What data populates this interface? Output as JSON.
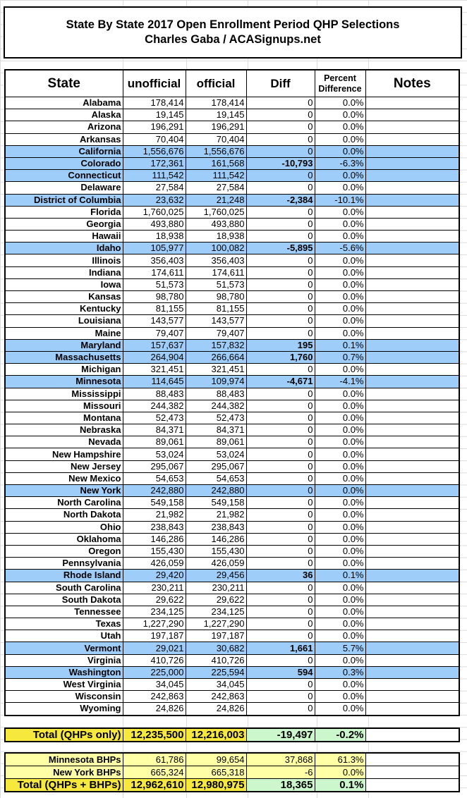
{
  "title": {
    "line1": "State By State 2017 Open Enrollment Period QHP Selections",
    "line2": "Charles Gaba / ACASignups.net"
  },
  "headers": {
    "state": "State",
    "unofficial": "unofficial",
    "official": "official",
    "diff": "Diff",
    "pct_line1": "Percent",
    "pct_line2": "Difference",
    "notes": "Notes"
  },
  "colors": {
    "highlight": "#9fcdfa",
    "total_yellow": "#f7e83e",
    "bhp_yellow": "#ffffa6",
    "diff_green": "#ccf7cc"
  },
  "rows": [
    {
      "state": "Alabama",
      "unofficial": "178,414",
      "official": "178,414",
      "diff": "0",
      "pct": "0.0%",
      "highlight": false
    },
    {
      "state": "Alaska",
      "unofficial": "19,145",
      "official": "19,145",
      "diff": "0",
      "pct": "0.0%",
      "highlight": false
    },
    {
      "state": "Arizona",
      "unofficial": "196,291",
      "official": "196,291",
      "diff": "0",
      "pct": "0.0%",
      "highlight": false
    },
    {
      "state": "Arkansas",
      "unofficial": "70,404",
      "official": "70,404",
      "diff": "0",
      "pct": "0.0%",
      "highlight": false
    },
    {
      "state": "California",
      "unofficial": "1,556,676",
      "official": "1,556,676",
      "diff": "0",
      "pct": "0.0%",
      "highlight": true
    },
    {
      "state": "Colorado",
      "unofficial": "172,361",
      "official": "161,568",
      "diff": "-10,793",
      "pct": "-6.3%",
      "highlight": true
    },
    {
      "state": "Connecticut",
      "unofficial": "111,542",
      "official": "111,542",
      "diff": "0",
      "pct": "0.0%",
      "highlight": true
    },
    {
      "state": "Delaware",
      "unofficial": "27,584",
      "official": "27,584",
      "diff": "0",
      "pct": "0.0%",
      "highlight": false
    },
    {
      "state": "District of Columbia",
      "unofficial": "23,632",
      "official": "21,248",
      "diff": "-2,384",
      "pct": "-10.1%",
      "highlight": true
    },
    {
      "state": "Florida",
      "unofficial": "1,760,025",
      "official": "1,760,025",
      "diff": "0",
      "pct": "0.0%",
      "highlight": false
    },
    {
      "state": "Georgia",
      "unofficial": "493,880",
      "official": "493,880",
      "diff": "0",
      "pct": "0.0%",
      "highlight": false
    },
    {
      "state": "Hawaii",
      "unofficial": "18,938",
      "official": "18,938",
      "diff": "0",
      "pct": "0.0%",
      "highlight": false
    },
    {
      "state": "Idaho",
      "unofficial": "105,977",
      "official": "100,082",
      "diff": "-5,895",
      "pct": "-5.6%",
      "highlight": true
    },
    {
      "state": "Illinois",
      "unofficial": "356,403",
      "official": "356,403",
      "diff": "0",
      "pct": "0.0%",
      "highlight": false
    },
    {
      "state": "Indiana",
      "unofficial": "174,611",
      "official": "174,611",
      "diff": "0",
      "pct": "0.0%",
      "highlight": false
    },
    {
      "state": "Iowa",
      "unofficial": "51,573",
      "official": "51,573",
      "diff": "0",
      "pct": "0.0%",
      "highlight": false
    },
    {
      "state": "Kansas",
      "unofficial": "98,780",
      "official": "98,780",
      "diff": "0",
      "pct": "0.0%",
      "highlight": false
    },
    {
      "state": "Kentucky",
      "unofficial": "81,155",
      "official": "81,155",
      "diff": "0",
      "pct": "0.0%",
      "highlight": false
    },
    {
      "state": "Louisiana",
      "unofficial": "143,577",
      "official": "143,577",
      "diff": "0",
      "pct": "0.0%",
      "highlight": false
    },
    {
      "state": "Maine",
      "unofficial": "79,407",
      "official": "79,407",
      "diff": "0",
      "pct": "0.0%",
      "highlight": false
    },
    {
      "state": "Maryland",
      "unofficial": "157,637",
      "official": "157,832",
      "diff": "195",
      "pct": "0.1%",
      "highlight": true
    },
    {
      "state": "Massachusetts",
      "unofficial": "264,904",
      "official": "266,664",
      "diff": "1,760",
      "pct": "0.7%",
      "highlight": true
    },
    {
      "state": "Michigan",
      "unofficial": "321,451",
      "official": "321,451",
      "diff": "0",
      "pct": "0.0%",
      "highlight": false
    },
    {
      "state": "Minnesota",
      "unofficial": "114,645",
      "official": "109,974",
      "diff": "-4,671",
      "pct": "-4.1%",
      "highlight": true
    },
    {
      "state": "Mississippi",
      "unofficial": "88,483",
      "official": "88,483",
      "diff": "0",
      "pct": "0.0%",
      "highlight": false
    },
    {
      "state": "Missouri",
      "unofficial": "244,382",
      "official": "244,382",
      "diff": "0",
      "pct": "0.0%",
      "highlight": false
    },
    {
      "state": "Montana",
      "unofficial": "52,473",
      "official": "52,473",
      "diff": "0",
      "pct": "0.0%",
      "highlight": false
    },
    {
      "state": "Nebraska",
      "unofficial": "84,371",
      "official": "84,371",
      "diff": "0",
      "pct": "0.0%",
      "highlight": false
    },
    {
      "state": "Nevada",
      "unofficial": "89,061",
      "official": "89,061",
      "diff": "0",
      "pct": "0.0%",
      "highlight": false
    },
    {
      "state": "New Hampshire",
      "unofficial": "53,024",
      "official": "53,024",
      "diff": "0",
      "pct": "0.0%",
      "highlight": false
    },
    {
      "state": "New Jersey",
      "unofficial": "295,067",
      "official": "295,067",
      "diff": "0",
      "pct": "0.0%",
      "highlight": false
    },
    {
      "state": "New Mexico",
      "unofficial": "54,653",
      "official": "54,653",
      "diff": "0",
      "pct": "0.0%",
      "highlight": false
    },
    {
      "state": "New York",
      "unofficial": "242,880",
      "official": "242,880",
      "diff": "0",
      "pct": "0.0%",
      "highlight": true
    },
    {
      "state": "North Carolina",
      "unofficial": "549,158",
      "official": "549,158",
      "diff": "0",
      "pct": "0.0%",
      "highlight": false
    },
    {
      "state": "North Dakota",
      "unofficial": "21,982",
      "official": "21,982",
      "diff": "0",
      "pct": "0.0%",
      "highlight": false
    },
    {
      "state": "Ohio",
      "unofficial": "238,843",
      "official": "238,843",
      "diff": "0",
      "pct": "0.0%",
      "highlight": false
    },
    {
      "state": "Oklahoma",
      "unofficial": "146,286",
      "official": "146,286",
      "diff": "0",
      "pct": "0.0%",
      "highlight": false
    },
    {
      "state": "Oregon",
      "unofficial": "155,430",
      "official": "155,430",
      "diff": "0",
      "pct": "0.0%",
      "highlight": false
    },
    {
      "state": "Pennsylvania",
      "unofficial": "426,059",
      "official": "426,059",
      "diff": "0",
      "pct": "0.0%",
      "highlight": false
    },
    {
      "state": "Rhode Island",
      "unofficial": "29,420",
      "official": "29,456",
      "diff": "36",
      "pct": "0.1%",
      "highlight": true
    },
    {
      "state": "South Carolina",
      "unofficial": "230,211",
      "official": "230,211",
      "diff": "0",
      "pct": "0.0%",
      "highlight": false
    },
    {
      "state": "South Dakota",
      "unofficial": "29,622",
      "official": "29,622",
      "diff": "0",
      "pct": "0.0%",
      "highlight": false
    },
    {
      "state": "Tennessee",
      "unofficial": "234,125",
      "official": "234,125",
      "diff": "0",
      "pct": "0.0%",
      "highlight": false
    },
    {
      "state": "Texas",
      "unofficial": "1,227,290",
      "official": "1,227,290",
      "diff": "0",
      "pct": "0.0%",
      "highlight": false
    },
    {
      "state": "Utah",
      "unofficial": "197,187",
      "official": "197,187",
      "diff": "0",
      "pct": "0.0%",
      "highlight": false
    },
    {
      "state": "Vermont",
      "unofficial": "29,021",
      "official": "30,682",
      "diff": "1,661",
      "pct": "5.7%",
      "highlight": true
    },
    {
      "state": "Virginia",
      "unofficial": "410,726",
      "official": "410,726",
      "diff": "0",
      "pct": "0.0%",
      "highlight": false
    },
    {
      "state": "Washington",
      "unofficial": "225,000",
      "official": "225,594",
      "diff": "594",
      "pct": "0.3%",
      "highlight": true
    },
    {
      "state": "West Virginia",
      "unofficial": "34,045",
      "official": "34,045",
      "diff": "0",
      "pct": "0.0%",
      "highlight": false
    },
    {
      "state": "Wisconsin",
      "unofficial": "242,863",
      "official": "242,863",
      "diff": "0",
      "pct": "0.0%",
      "highlight": false
    },
    {
      "state": "Wyoming",
      "unofficial": "24,826",
      "official": "24,826",
      "diff": "0",
      "pct": "0.0%",
      "highlight": false
    }
  ],
  "total_qhp": {
    "label": "Total (QHPs only)",
    "unofficial": "12,235,500",
    "official": "12,216,003",
    "diff": "-19,497",
    "pct": "-0.2%"
  },
  "bhp": [
    {
      "label": "Minnesota BHPs",
      "unofficial": "61,786",
      "official": "99,654",
      "diff": "37,868",
      "pct": "61.3%"
    },
    {
      "label": "New York BHPs",
      "unofficial": "665,324",
      "official": "665,318",
      "diff": "-6",
      "pct": "0.0%"
    }
  ],
  "total_all": {
    "label": "Total (QHPs + BHPs)",
    "unofficial": "12,962,610",
    "official": "12,980,975",
    "diff": "18,365",
    "pct": "0.1%"
  }
}
